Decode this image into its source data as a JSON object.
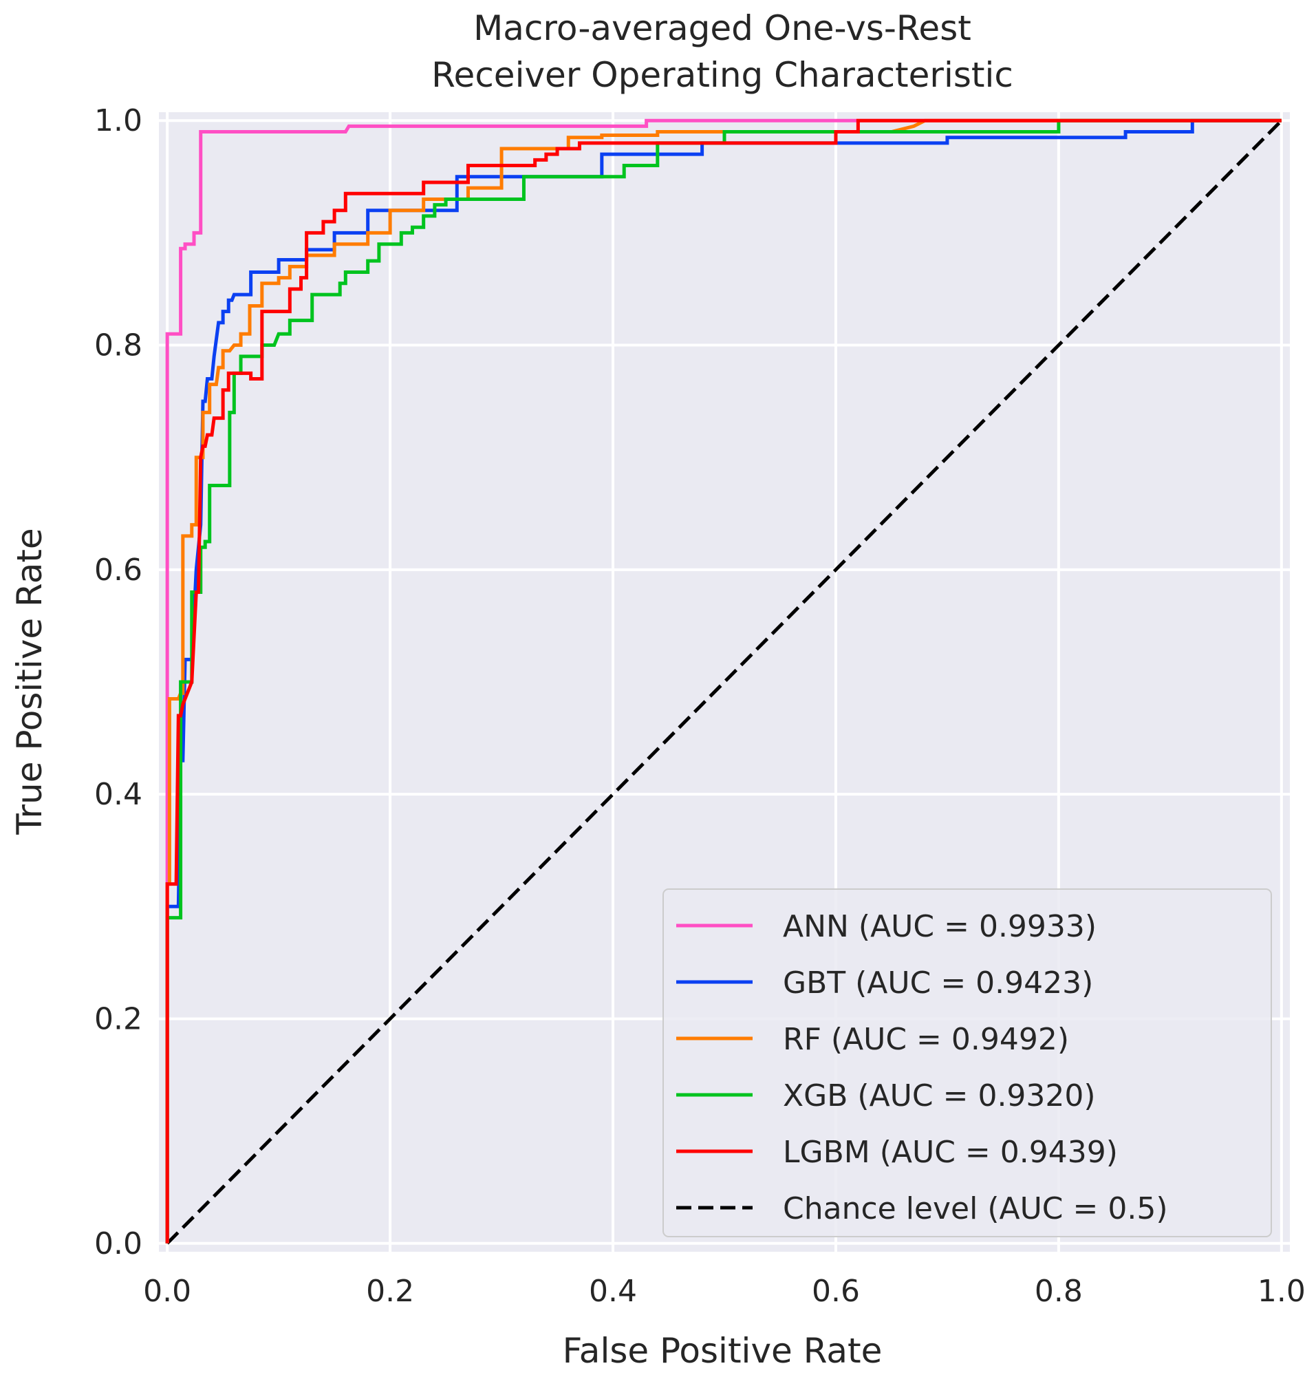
{
  "chart_data": {
    "type": "line",
    "title_line1": "Macro-averaged One-vs-Rest",
    "title_line2": "Receiver Operating Characteristic",
    "xlabel": "False Positive Rate",
    "ylabel": "True Positive Rate",
    "xlim": [
      -0.0075,
      1.0075
    ],
    "ylim": [
      -0.0075,
      1.0075
    ],
    "xticks": [
      0.0,
      0.2,
      0.4,
      0.6,
      0.8,
      1.0
    ],
    "yticks": [
      0.0,
      0.2,
      0.4,
      0.6,
      0.8,
      1.0
    ],
    "xtick_labels": [
      "0.0",
      "0.2",
      "0.4",
      "0.6",
      "0.8",
      "1.0"
    ],
    "ytick_labels": [
      "0.0",
      "0.2",
      "0.4",
      "0.6",
      "0.8",
      "1.0"
    ],
    "grid": true,
    "background": "#eaeaf2",
    "legend_position": "lower-right",
    "series": [
      {
        "name": "ANN",
        "label": "ANN (AUC = 0.9933)",
        "auc": 0.9933,
        "color": "#ff4fc4",
        "dashed": false,
        "x": [
          0.0,
          0.0,
          0.002,
          0.002,
          0.012,
          0.012,
          0.016,
          0.016,
          0.024,
          0.024,
          0.03,
          0.03,
          0.16,
          0.163,
          0.43,
          0.43,
          0.62,
          0.62,
          1.0
        ],
        "y": [
          0.0,
          0.81,
          0.81,
          0.81,
          0.81,
          0.886,
          0.886,
          0.89,
          0.89,
          0.9,
          0.9,
          0.99,
          0.99,
          0.995,
          0.995,
          1.0,
          1.0,
          1.0,
          1.0
        ]
      },
      {
        "name": "GBT",
        "label": "GBT (AUC = 0.9423)",
        "auc": 0.9423,
        "color": "#0b40f2",
        "dashed": false,
        "x": [
          0.0,
          0.0,
          0.01,
          0.012,
          0.014,
          0.016,
          0.016,
          0.022,
          0.026,
          0.03,
          0.032,
          0.034,
          0.036,
          0.04,
          0.042,
          0.046,
          0.05,
          0.05,
          0.055,
          0.055,
          0.058,
          0.06,
          0.075,
          0.075,
          0.1,
          0.1,
          0.125,
          0.125,
          0.15,
          0.15,
          0.18,
          0.18,
          0.26,
          0.26,
          0.39,
          0.39,
          0.48,
          0.48,
          0.7,
          0.7,
          0.86,
          0.86,
          0.92,
          0.92,
          1.0
        ],
        "y": [
          0.0,
          0.3,
          0.3,
          0.43,
          0.43,
          0.52,
          0.52,
          0.52,
          0.6,
          0.64,
          0.75,
          0.75,
          0.77,
          0.77,
          0.79,
          0.82,
          0.82,
          0.83,
          0.83,
          0.84,
          0.84,
          0.845,
          0.845,
          0.865,
          0.865,
          0.876,
          0.876,
          0.885,
          0.885,
          0.9,
          0.9,
          0.92,
          0.92,
          0.95,
          0.95,
          0.97,
          0.97,
          0.98,
          0.98,
          0.985,
          0.985,
          0.99,
          0.99,
          1.0,
          1.0
        ]
      },
      {
        "name": "RF",
        "label": "RF (AUC = 0.9492)",
        "auc": 0.9492,
        "color": "#ff7c00",
        "dashed": false,
        "x": [
          0.0,
          0.0,
          0.002,
          0.002,
          0.01,
          0.012,
          0.014,
          0.014,
          0.022,
          0.022,
          0.026,
          0.026,
          0.032,
          0.032,
          0.038,
          0.038,
          0.044,
          0.046,
          0.05,
          0.05,
          0.056,
          0.06,
          0.066,
          0.066,
          0.074,
          0.074,
          0.085,
          0.085,
          0.1,
          0.1,
          0.11,
          0.11,
          0.125,
          0.125,
          0.15,
          0.15,
          0.18,
          0.18,
          0.2,
          0.2,
          0.23,
          0.23,
          0.27,
          0.27,
          0.3,
          0.3,
          0.36,
          0.36,
          0.39,
          0.39,
          0.44,
          0.44,
          0.5,
          0.5,
          0.65,
          0.67,
          0.68,
          0.68,
          1.0
        ],
        "y": [
          0.0,
          0.32,
          0.32,
          0.485,
          0.485,
          0.49,
          0.49,
          0.63,
          0.63,
          0.64,
          0.64,
          0.7,
          0.7,
          0.74,
          0.74,
          0.765,
          0.765,
          0.78,
          0.78,
          0.795,
          0.795,
          0.8,
          0.8,
          0.81,
          0.81,
          0.835,
          0.835,
          0.855,
          0.855,
          0.86,
          0.86,
          0.87,
          0.87,
          0.88,
          0.88,
          0.89,
          0.89,
          0.9,
          0.9,
          0.92,
          0.92,
          0.93,
          0.93,
          0.94,
          0.94,
          0.975,
          0.975,
          0.985,
          0.985,
          0.987,
          0.987,
          0.99,
          0.99,
          0.99,
          0.99,
          0.995,
          1.0,
          1.0,
          1.0
        ]
      },
      {
        "name": "XGB",
        "label": "XGB (AUC = 0.9320)",
        "auc": 0.932,
        "color": "#00c31f",
        "dashed": false,
        "x": [
          0.0,
          0.0,
          0.012,
          0.012,
          0.016,
          0.016,
          0.022,
          0.022,
          0.026,
          0.026,
          0.03,
          0.03,
          0.034,
          0.034,
          0.038,
          0.038,
          0.042,
          0.042,
          0.056,
          0.056,
          0.06,
          0.06,
          0.066,
          0.066,
          0.085,
          0.085,
          0.096,
          0.1,
          0.11,
          0.11,
          0.13,
          0.13,
          0.155,
          0.155,
          0.16,
          0.16,
          0.18,
          0.18,
          0.19,
          0.19,
          0.21,
          0.21,
          0.22,
          0.22,
          0.23,
          0.23,
          0.24,
          0.24,
          0.25,
          0.25,
          0.32,
          0.32,
          0.41,
          0.41,
          0.44,
          0.44,
          0.5,
          0.5,
          0.61,
          0.61,
          0.8,
          0.8,
          1.0
        ],
        "y": [
          0.0,
          0.29,
          0.29,
          0.5,
          0.5,
          0.5,
          0.5,
          0.58,
          0.58,
          0.58,
          0.58,
          0.62,
          0.62,
          0.625,
          0.625,
          0.675,
          0.675,
          0.675,
          0.675,
          0.74,
          0.74,
          0.775,
          0.775,
          0.79,
          0.79,
          0.8,
          0.8,
          0.81,
          0.81,
          0.822,
          0.822,
          0.845,
          0.845,
          0.855,
          0.855,
          0.865,
          0.865,
          0.875,
          0.875,
          0.89,
          0.89,
          0.9,
          0.9,
          0.905,
          0.905,
          0.915,
          0.915,
          0.925,
          0.925,
          0.93,
          0.93,
          0.95,
          0.95,
          0.96,
          0.96,
          0.98,
          0.98,
          0.99,
          0.99,
          0.99,
          0.99,
          1.0,
          1.0
        ]
      },
      {
        "name": "LGBM",
        "label": "LGBM (AUC = 0.9439)",
        "auc": 0.9439,
        "color": "#ff0000",
        "dashed": false,
        "x": [
          0.0,
          0.0,
          0.008,
          0.01,
          0.012,
          0.014,
          0.014,
          0.022,
          0.022,
          0.026,
          0.028,
          0.03,
          0.03,
          0.032,
          0.034,
          0.036,
          0.04,
          0.042,
          0.05,
          0.05,
          0.055,
          0.055,
          0.075,
          0.075,
          0.085,
          0.085,
          0.11,
          0.11,
          0.12,
          0.12,
          0.125,
          0.125,
          0.13,
          0.13,
          0.14,
          0.14,
          0.15,
          0.15,
          0.16,
          0.16,
          0.23,
          0.23,
          0.27,
          0.27,
          0.33,
          0.33,
          0.34,
          0.34,
          0.35,
          0.35,
          0.37,
          0.37,
          0.41,
          0.41,
          0.6,
          0.6,
          0.62,
          0.62,
          1.0
        ],
        "y": [
          0.0,
          0.32,
          0.32,
          0.47,
          0.47,
          0.48,
          0.48,
          0.5,
          0.5,
          0.58,
          0.58,
          0.7,
          0.7,
          0.71,
          0.71,
          0.72,
          0.72,
          0.735,
          0.735,
          0.76,
          0.76,
          0.775,
          0.775,
          0.77,
          0.77,
          0.83,
          0.83,
          0.85,
          0.85,
          0.86,
          0.86,
          0.9,
          0.9,
          0.9,
          0.9,
          0.91,
          0.91,
          0.92,
          0.92,
          0.935,
          0.935,
          0.945,
          0.945,
          0.96,
          0.96,
          0.965,
          0.965,
          0.97,
          0.97,
          0.975,
          0.975,
          0.98,
          0.98,
          0.98,
          0.98,
          0.99,
          0.99,
          1.0,
          1.0
        ]
      },
      {
        "name": "Chance level",
        "label": "Chance level (AUC = 0.5)",
        "auc": 0.5,
        "color": "#000000",
        "dashed": true,
        "x": [
          0.0,
          1.0
        ],
        "y": [
          0.0,
          1.0
        ]
      }
    ]
  }
}
